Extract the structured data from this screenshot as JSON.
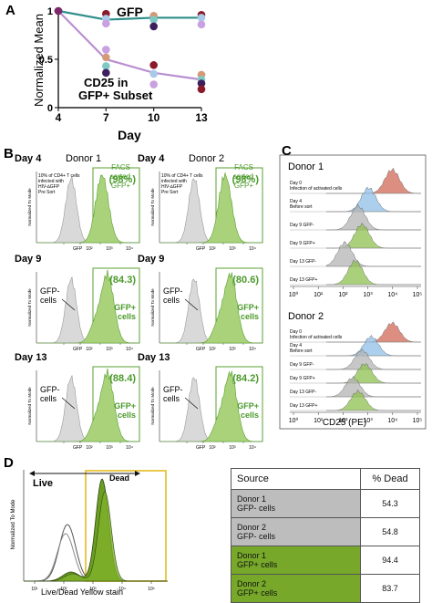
{
  "panel_a": {
    "letter": "A",
    "gfp_label": "GFP",
    "cd25_label_line1": "CD25 in",
    "cd25_label_line2": "GFP+ Subset",
    "ylabel": "Normalized Mean",
    "xlabel": "Day",
    "yticks": [
      "0",
      "0.5",
      "1"
    ],
    "chart_data": {
      "type": "scatter",
      "x": [
        4,
        7,
        10,
        13
      ],
      "xlim": [
        4,
        13
      ],
      "ylim": [
        0,
        1.0
      ],
      "series": [
        {
          "name": "GFP",
          "mean": [
            1.0,
            0.91,
            0.93,
            0.93
          ],
          "line_color": "#2e8f8a",
          "points": [
            [
              4,
              1.0
            ],
            [
              7,
              0.97
            ],
            [
              7,
              0.92
            ],
            [
              7,
              0.87
            ],
            [
              10,
              0.95
            ],
            [
              10,
              0.91
            ],
            [
              10,
              0.84
            ],
            [
              13,
              0.96
            ],
            [
              13,
              0.93
            ],
            [
              13,
              0.86
            ]
          ]
        },
        {
          "name": "CD25 in GFP+ Subset",
          "mean": [
            1.0,
            0.5,
            0.36,
            0.29
          ],
          "line_color": "#b98fd0",
          "points": [
            [
              4,
              1.0
            ],
            [
              7,
              0.6
            ],
            [
              7,
              0.52
            ],
            [
              7,
              0.43
            ],
            [
              7,
              0.36
            ],
            [
              10,
              0.44
            ],
            [
              10,
              0.35
            ],
            [
              10,
              0.24
            ],
            [
              13,
              0.34
            ],
            [
              13,
              0.29
            ],
            [
              13,
              0.25
            ],
            [
              13,
              0.19
            ]
          ]
        }
      ]
    }
  },
  "panel_b": {
    "letter": "B",
    "ylabel": "Normalized To Mode",
    "xlabel": "GFP",
    "xticks": [
      "10²",
      "10³",
      "10⁴"
    ],
    "pre_sort_note": [
      "10% of CD4+ T cells",
      "infected with",
      "HIV-∆GFP",
      "Pre Sort"
    ],
    "sorted_note": [
      "FACS",
      "sorted",
      "GFP+"
    ],
    "gfp_minus_label": [
      "GFP-",
      "cells"
    ],
    "gfp_plus_label": [
      "GFP+",
      "cells"
    ],
    "histograms": [
      {
        "day": "Day 4",
        "donor": "Donor 1",
        "pct": "(98%)"
      },
      {
        "day": "Day 4",
        "donor": "Donor 2",
        "pct": "(98%)"
      },
      {
        "day": "Day 9",
        "donor": "",
        "pct": "(84.3)"
      },
      {
        "day": "Day 9",
        "donor": "",
        "pct": "(80.6)"
      },
      {
        "day": "Day 13",
        "donor": "",
        "pct": "(88.4)"
      },
      {
        "day": "Day 13",
        "donor": "",
        "pct": "(84.2)"
      }
    ]
  },
  "panel_c": {
    "letter": "C",
    "donor1": "Donor 1",
    "donor2": "Donor 2",
    "xlabel": "CD25 (PE)",
    "rows": [
      {
        "label": [
          "Day 0",
          "Infection of activated cells"
        ],
        "color": "#d06a55"
      },
      {
        "label": [
          "Day 4",
          "Before sort"
        ],
        "color": "#8fbfe6"
      },
      {
        "label": [
          "Day 9 GFP-"
        ],
        "color": "#b4b4b4"
      },
      {
        "label": [
          "Day 9 GFP+"
        ],
        "color": "#8fc050"
      },
      {
        "label": [
          "Day 13 GFP-"
        ],
        "color": "#b4b4b4"
      },
      {
        "label": [
          "Day 13 GFP+"
        ],
        "color": "#8fc050"
      }
    ],
    "xticks": [
      "10⁰",
      "10¹",
      "10²",
      "10³",
      "10⁴",
      "10⁵"
    ]
  },
  "panel_d": {
    "letter": "D",
    "live_label": "Live",
    "dead_label": "Dead",
    "ylabel": "Normalized To Mode",
    "xlabel": "Live/Dead Yellow stain",
    "table": {
      "header_source": "Source",
      "header_pct": "% Dead",
      "rows": [
        {
          "line1": "Donor 1",
          "line2": "GFP- cells",
          "value": "54.3",
          "kind": "gray"
        },
        {
          "line1": "Donor 2",
          "line2": "GFP- cells",
          "value": "54.8",
          "kind": "gray"
        },
        {
          "line1": "Donor 1",
          "line2": "GFP+ cells",
          "value": "94.4",
          "kind": "green"
        },
        {
          "line1": "Donor 2",
          "line2": "GFP+ cells",
          "value": "83.7",
          "kind": "green"
        }
      ]
    }
  }
}
